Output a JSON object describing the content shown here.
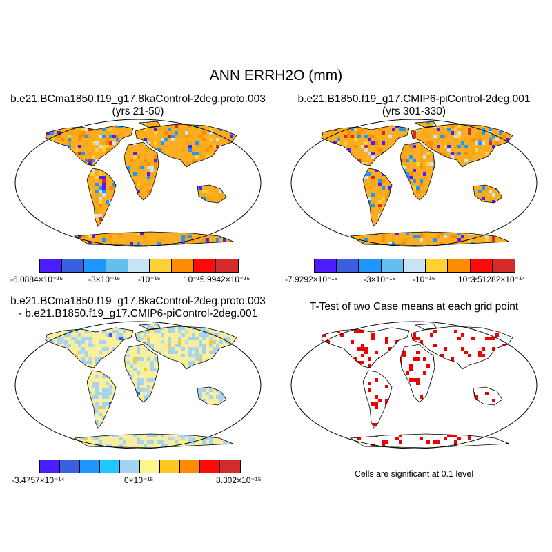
{
  "title": "ANN ERRH2O (mm)",
  "panels": [
    {
      "id": "case1",
      "title_line1": "b.e21.BCma1850.f19_g17.8kaControl-2deg.proto.003",
      "title_line2": "(yrs 21-50)",
      "colorbar": {
        "colors": [
          "#4b1dff",
          "#3a5fe0",
          "#1e96ff",
          "#63bff0",
          "#c8e4f4",
          "#ffd233",
          "#ff8c00",
          "#ff0a0a",
          "#d42a2a"
        ],
        "labels": [
          "-6.0884×10⁻¹⁵",
          "-3×10⁻¹⁶",
          "-10⁻¹⁶",
          "10⁻¹⁶",
          "5.9942×10⁻¹⁵"
        ]
      }
    },
    {
      "id": "case2",
      "title_line1": "b.e21.B1850.f19_g17.CMIP6-piControl-2deg.001",
      "title_line2": "(yrs 301-330)",
      "colorbar": {
        "colors": [
          "#4b1dff",
          "#3a5fe0",
          "#1e96ff",
          "#63bff0",
          "#c8e4f4",
          "#ffd233",
          "#ff8c00",
          "#ff0a0a",
          "#d42a2a"
        ],
        "labels": [
          "-7.9292×10⁻¹⁵",
          "-3×10⁻¹⁶",
          "-10⁻¹⁶",
          "10⁻¹⁶",
          "3.51282×10⁻¹⁴"
        ]
      }
    },
    {
      "id": "difference",
      "title_line1": "b.e21.BCma1850.f19_g17.8kaControl-2deg.proto.003",
      "title_line2": "- b.e21.B1850.f19_g17.CMIP6-piControl-2deg.001",
      "colorbar": {
        "colors": [
          "#4b1dff",
          "#3a5fe0",
          "#1e96ff",
          "#1ec8ff",
          "#a6d4f0",
          "#fff58c",
          "#ffc81e",
          "#ff8c00",
          "#ff0a0a",
          "#d42a2a"
        ],
        "labels": [
          "-3.4757×10⁻¹⁴",
          "0×10⁻¹⁵",
          "8.302×10⁻¹⁵"
        ]
      }
    },
    {
      "id": "ttest",
      "title_line1": "T-Test of two Case means at each grid point",
      "note": "Cells are significant at 0.1 level"
    }
  ]
}
